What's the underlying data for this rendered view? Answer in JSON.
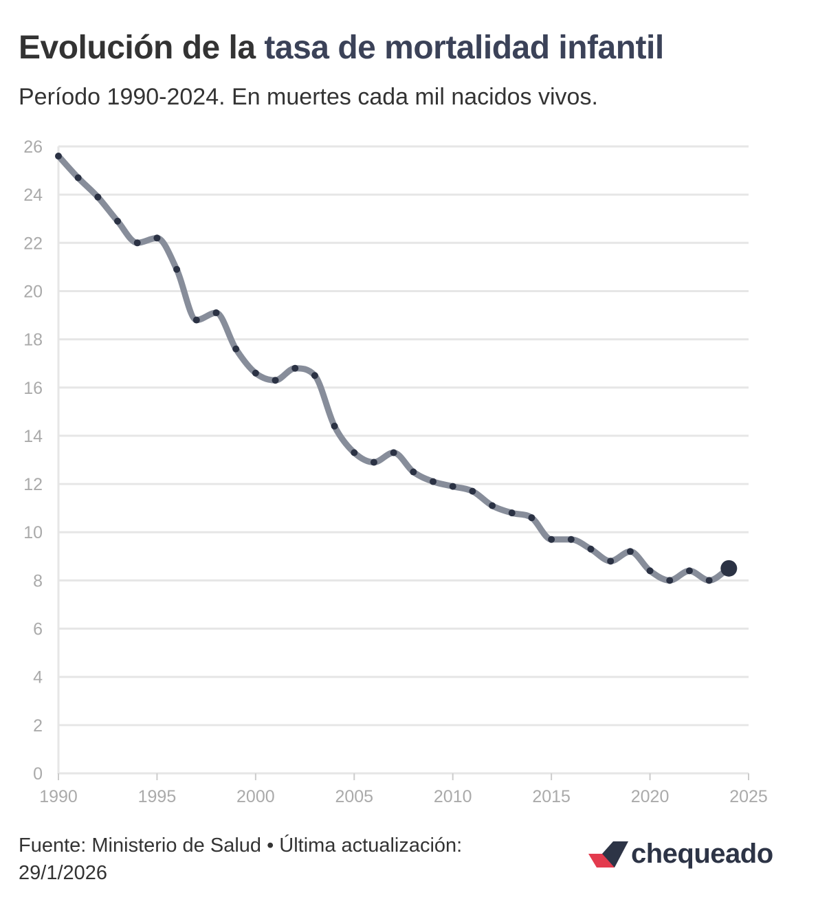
{
  "header": {
    "title_part1": "Evolución de la ",
    "title_highlight": "tasa de mortalidad infantil",
    "subtitle": "Período 1990-2024. En muertes cada mil nacidos vivos."
  },
  "footer": {
    "source_line1": "Fuente: Ministerio de Salud • Última actualización:",
    "source_line2": "29/1/2026",
    "logo_text": "chequeado"
  },
  "colors": {
    "line": "#878d9a",
    "marker": "#2b3244",
    "grid": "#e6e6e6",
    "tick_text": "#aaaaaa",
    "title_highlight": "#3b4258",
    "logo_red": "#e33b4e",
    "logo_dark": "#2d3446"
  },
  "chart_data": {
    "type": "line",
    "title": "Evolución de la tasa de mortalidad infantil",
    "subtitle": "Período 1990-2024. En muertes cada mil nacidos vivos.",
    "xlabel": "",
    "ylabel": "",
    "xlim": [
      1990,
      2025
    ],
    "ylim": [
      0,
      26
    ],
    "xticks": [
      1990,
      1995,
      2000,
      2005,
      2010,
      2015,
      2020,
      2025
    ],
    "yticks": [
      0,
      2,
      4,
      6,
      8,
      10,
      12,
      14,
      16,
      18,
      20,
      22,
      24,
      26
    ],
    "grid": true,
    "series": [
      {
        "name": "Tasa de mortalidad infantil",
        "x": [
          1990,
          1991,
          1992,
          1993,
          1994,
          1995,
          1996,
          1997,
          1998,
          1999,
          2000,
          2001,
          2002,
          2003,
          2004,
          2005,
          2006,
          2007,
          2008,
          2009,
          2010,
          2011,
          2012,
          2013,
          2014,
          2015,
          2016,
          2017,
          2018,
          2019,
          2020,
          2021,
          2022,
          2023,
          2024
        ],
        "values": [
          25.6,
          24.7,
          23.9,
          22.9,
          22.0,
          22.2,
          20.9,
          18.8,
          19.1,
          17.6,
          16.6,
          16.3,
          16.8,
          16.5,
          14.4,
          13.3,
          12.9,
          13.3,
          12.5,
          12.1,
          11.9,
          11.7,
          11.1,
          10.8,
          10.6,
          9.7,
          9.7,
          9.3,
          8.8,
          9.2,
          8.4,
          8.0,
          8.4,
          8.0,
          8.5
        ]
      }
    ]
  }
}
